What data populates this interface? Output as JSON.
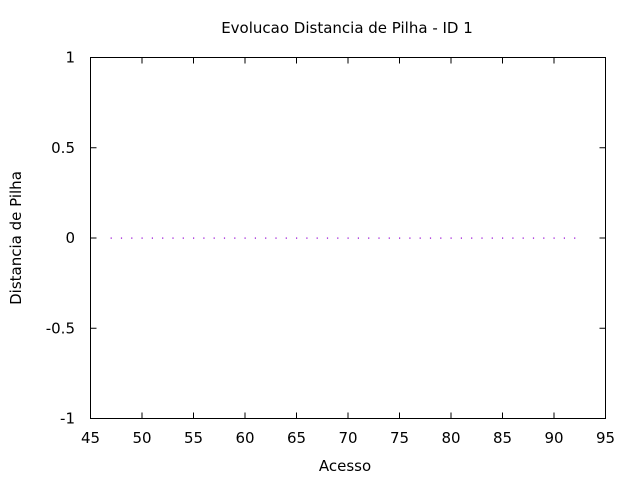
{
  "chart_data": {
    "type": "scatter",
    "title": "Evolucao Distancia de Pilha - ID 1",
    "xlabel": "Acesso",
    "ylabel": "Distancia de Pilha",
    "xlim": [
      45,
      95
    ],
    "ylim": [
      -1,
      1
    ],
    "xticks": [
      45,
      50,
      55,
      60,
      65,
      70,
      75,
      80,
      85,
      90,
      95
    ],
    "yticks": [
      -1,
      -0.5,
      0,
      0.5,
      1
    ],
    "xtick_labels": [
      "45",
      "50",
      "55",
      "60",
      "65",
      "70",
      "75",
      "80",
      "85",
      "90",
      "95"
    ],
    "ytick_labels": [
      "-1",
      "-0.5",
      "0",
      "0.5",
      "1"
    ],
    "grid": false,
    "series": [
      {
        "color": "#9400d3",
        "x": [
          47,
          48,
          49,
          50,
          51,
          52,
          53,
          54,
          55,
          56,
          57,
          58,
          59,
          60,
          61,
          62,
          63,
          64,
          65,
          66,
          67,
          68,
          69,
          70,
          71,
          72,
          73,
          74,
          75,
          76,
          77,
          78,
          79,
          80,
          81,
          82,
          83,
          84,
          85,
          86,
          87,
          88,
          89,
          90,
          91,
          92
        ],
        "y": [
          0,
          0,
          0,
          0,
          0,
          0,
          0,
          0,
          0,
          0,
          0,
          0,
          0,
          0,
          0,
          0,
          0,
          0,
          0,
          0,
          0,
          0,
          0,
          0,
          0,
          0,
          0,
          0,
          0,
          0,
          0,
          0,
          0,
          0,
          0,
          0,
          0,
          0,
          0,
          0,
          0,
          0,
          0,
          0,
          0,
          0
        ]
      }
    ]
  }
}
